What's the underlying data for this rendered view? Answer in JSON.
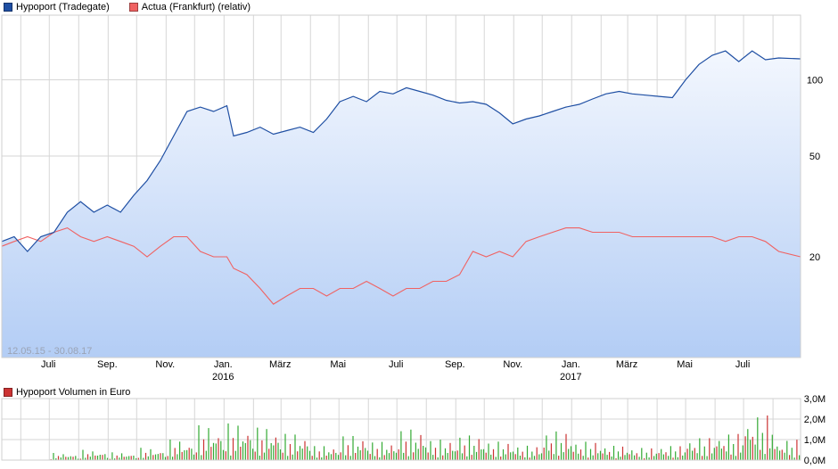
{
  "legend": {
    "series1": "Hypoport (Tradegate)",
    "series2": "Actua (Frankfurt) (relativ)",
    "volume": "Hypoport Volumen in Euro"
  },
  "date_range": "12.05.15 - 30.08.17",
  "colors": {
    "series1": "#1f4fa3",
    "series2": "#f06262",
    "area_top": "#f3f7fe",
    "area_bottom": "#b3cdf5",
    "grid": "#d6d6d6",
    "vol_up": "#33aa33",
    "vol_down": "#cc3333"
  },
  "chart_data": [
    {
      "type": "line",
      "y_scale": "log",
      "ylim": [
        8,
        180
      ],
      "y_ticks": [
        "20",
        "50",
        "100"
      ],
      "x_ticks": [
        "Juli",
        "Sep.",
        "Nov.",
        "Jan.",
        "März",
        "Mai",
        "Juli",
        "Sep.",
        "Nov.",
        "Jan.",
        "März",
        "Mai",
        "Juli"
      ],
      "year_labels": [
        "2016",
        "2017"
      ],
      "series": [
        {
          "name": "Hypoport (Tradegate)",
          "x": [
            "2015-05-12",
            "2015-05-25",
            "2015-06-08",
            "2015-06-22",
            "2015-07-06",
            "2015-07-20",
            "2015-08-03",
            "2015-08-17",
            "2015-08-31",
            "2015-09-14",
            "2015-09-28",
            "2015-10-12",
            "2015-10-26",
            "2015-11-09",
            "2015-11-23",
            "2015-12-07",
            "2015-12-21",
            "2016-01-04",
            "2016-01-11",
            "2016-01-25",
            "2016-02-08",
            "2016-02-22",
            "2016-03-07",
            "2016-03-21",
            "2016-04-04",
            "2016-04-18",
            "2016-05-02",
            "2016-05-16",
            "2016-05-30",
            "2016-06-13",
            "2016-06-27",
            "2016-07-11",
            "2016-07-25",
            "2016-08-08",
            "2016-08-22",
            "2016-09-05",
            "2016-09-19",
            "2016-10-03",
            "2016-10-17",
            "2016-10-31",
            "2016-11-14",
            "2016-11-28",
            "2016-12-12",
            "2016-12-26",
            "2017-01-09",
            "2017-01-23",
            "2017-02-06",
            "2017-02-20",
            "2017-03-06",
            "2017-03-20",
            "2017-04-03",
            "2017-04-17",
            "2017-05-01",
            "2017-05-15",
            "2017-05-29",
            "2017-06-12",
            "2017-06-26",
            "2017-07-10",
            "2017-07-24",
            "2017-08-07",
            "2017-08-30"
          ],
          "values": [
            23,
            24,
            21,
            24,
            25,
            30,
            33,
            30,
            32,
            30,
            35,
            40,
            48,
            60,
            75,
            78,
            75,
            79,
            60,
            62,
            65,
            61,
            63,
            65,
            62,
            70,
            82,
            86,
            82,
            90,
            88,
            93,
            90,
            87,
            83,
            81,
            82,
            80,
            74,
            67,
            70,
            72,
            75,
            78,
            80,
            84,
            88,
            90,
            88,
            87,
            86,
            85,
            100,
            115,
            125,
            130,
            118,
            130,
            120,
            122,
            121
          ]
        },
        {
          "name": "Actua (Frankfurt) (relativ)",
          "x": [
            "2015-05-12",
            "2015-05-25",
            "2015-06-08",
            "2015-06-22",
            "2015-07-06",
            "2015-07-20",
            "2015-08-03",
            "2015-08-17",
            "2015-08-31",
            "2015-09-14",
            "2015-09-28",
            "2015-10-12",
            "2015-10-26",
            "2015-11-09",
            "2015-11-23",
            "2015-12-07",
            "2015-12-21",
            "2016-01-04",
            "2016-01-11",
            "2016-01-25",
            "2016-02-08",
            "2016-02-22",
            "2016-03-07",
            "2016-03-21",
            "2016-04-04",
            "2016-04-18",
            "2016-05-02",
            "2016-05-16",
            "2016-05-30",
            "2016-06-13",
            "2016-06-27",
            "2016-07-11",
            "2016-07-25",
            "2016-08-08",
            "2016-08-22",
            "2016-09-05",
            "2016-09-19",
            "2016-10-03",
            "2016-10-17",
            "2016-10-31",
            "2016-11-14",
            "2016-11-28",
            "2016-12-12",
            "2016-12-26",
            "2017-01-09",
            "2017-01-23",
            "2017-02-06",
            "2017-02-20",
            "2017-03-06",
            "2017-03-20",
            "2017-04-03",
            "2017-04-17",
            "2017-05-01",
            "2017-05-15",
            "2017-05-29",
            "2017-06-12",
            "2017-06-26",
            "2017-07-10",
            "2017-07-24",
            "2017-08-07",
            "2017-08-30"
          ],
          "values": [
            22,
            23,
            24,
            23,
            25,
            26,
            24,
            23,
            24,
            23,
            22,
            20,
            22,
            24,
            24,
            21,
            20,
            20,
            18,
            17,
            15,
            13,
            14,
            15,
            15,
            14,
            15,
            15,
            16,
            15,
            14,
            15,
            15,
            16,
            16,
            17,
            21,
            20,
            21,
            20,
            23,
            24,
            25,
            26,
            26,
            25,
            25,
            25,
            24,
            24,
            24,
            24,
            24,
            24,
            24,
            23,
            24,
            24,
            23,
            21,
            20
          ]
        }
      ]
    },
    {
      "type": "bar",
      "title": "Hypoport Volumen in Euro",
      "ylim": [
        0,
        3000000
      ],
      "y_ticks": [
        "3,0M",
        "2,0M",
        "1,0M",
        "0,0M"
      ],
      "x": [
        "2015-07",
        "2015-08",
        "2015-09",
        "2015-10",
        "2015-11",
        "2015-12",
        "2016-01",
        "2016-02",
        "2016-03",
        "2016-04",
        "2016-05",
        "2016-06",
        "2016-07",
        "2016-08",
        "2016-09",
        "2016-10",
        "2016-11",
        "2016-12",
        "2017-01",
        "2017-02",
        "2017-03",
        "2017-04",
        "2017-05",
        "2017-06",
        "2017-07",
        "2017-08"
      ],
      "values": [
        350000,
        500000,
        380000,
        600000,
        1000000,
        1700000,
        1800000,
        1600000,
        1300000,
        700000,
        1200000,
        900000,
        1500000,
        1000000,
        1200000,
        900000,
        700000,
        1400000,
        900000,
        700000,
        600000,
        700000,
        1100000,
        1300000,
        2200000,
        1000000
      ]
    }
  ]
}
